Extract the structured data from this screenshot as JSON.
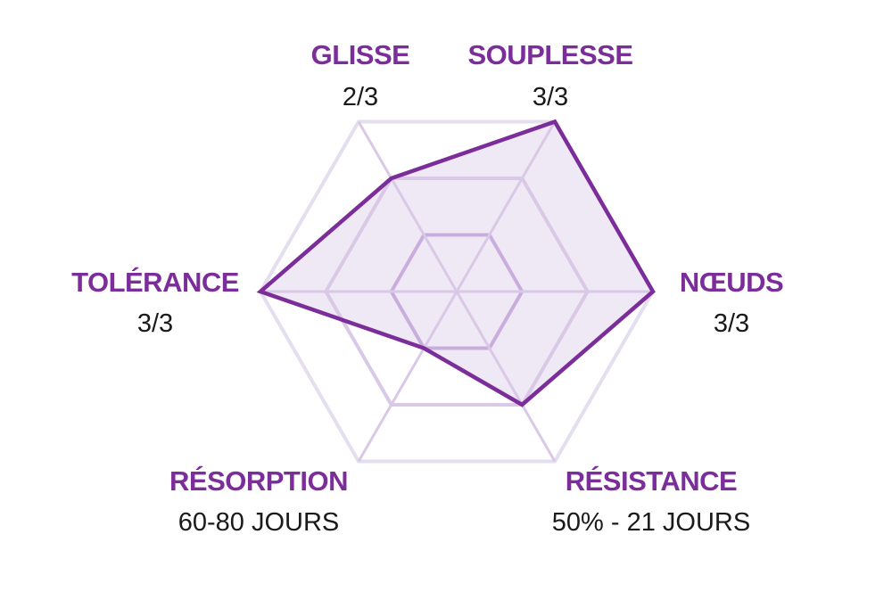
{
  "chart_data": {
    "type": "radar",
    "scale_max": 3,
    "rings": 3,
    "axes": [
      {
        "label": "GLISSE",
        "value_label": "2/3",
        "value": 2
      },
      {
        "label": "SOUPLESSE",
        "value_label": "3/3",
        "value": 3
      },
      {
        "label": "NŒUDS",
        "value_label": "3/3",
        "value": 3
      },
      {
        "label": "RÉSISTANCE",
        "value_label": "50% - 21 JOURS",
        "value": 2
      },
      {
        "label": "RÉSORPTION",
        "value_label": "60-80 JOURS",
        "value": 1
      },
      {
        "label": "TOLÉRANCE",
        "value_label": "3/3",
        "value": 3
      }
    ],
    "colors": {
      "accent": "#7B2D9A",
      "fill": "#EFE8F5",
      "grid_outer": "#E4DEEE",
      "grid_middle": "#D9C8E6",
      "grid_inner": "#C9AEDD",
      "value_text": "#1A1A1A"
    }
  }
}
